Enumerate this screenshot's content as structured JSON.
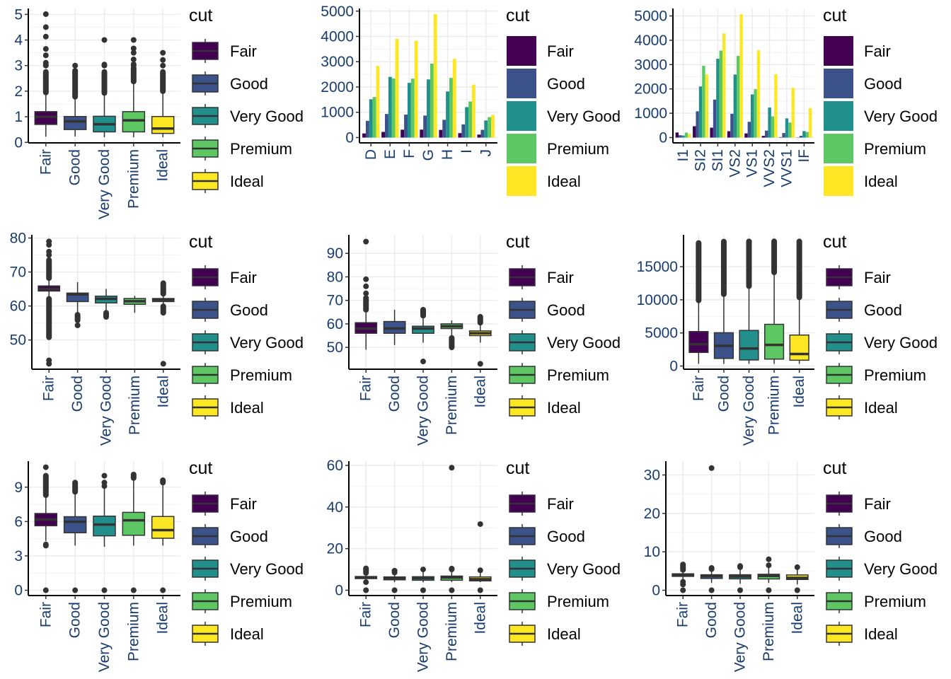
{
  "palette": {
    "Fair": "#440154",
    "Good": "#3B528B",
    "Very Good": "#21908C",
    "Premium": "#5DC863",
    "Ideal": "#FDE725",
    "box_line": "#333333",
    "grid": "#EBEBEB"
  },
  "chart_data": [
    {
      "type": "boxplot",
      "categories": [
        "Fair",
        "Good",
        "Very Good",
        "Premium",
        "Ideal"
      ],
      "ylim": [
        -0.02,
        5.23
      ],
      "yticks": [
        0,
        1,
        2,
        3,
        4,
        5
      ],
      "legend": {
        "title": "cut",
        "entries": [
          "Fair",
          "Good",
          "Very Good",
          "Premium",
          "Ideal"
        ],
        "placement": "right"
      },
      "boxes": [
        {
          "low": 0.22,
          "q1": 0.7,
          "median": 1.0,
          "q3": 1.2,
          "high": 1.95,
          "outlier_ranges": [
            [
              1.95,
              2.75
            ]
          ],
          "outliers": [
            3.0,
            3.02,
            3.11,
            3.4,
            3.65,
            4.13,
            4.5,
            5.01
          ]
        },
        {
          "low": 0.23,
          "q1": 0.5,
          "median": 0.82,
          "q3": 1.01,
          "high": 1.77,
          "outlier_ranges": [
            [
              1.78,
              2.8
            ]
          ],
          "outliers": [
            3.0
          ]
        },
        {
          "low": 0.2,
          "q1": 0.41,
          "median": 0.71,
          "q3": 1.02,
          "high": 1.92,
          "outlier_ranges": [
            [
              1.93,
              2.75
            ]
          ],
          "outliers": [
            3.0,
            3.04,
            4.0
          ]
        },
        {
          "low": 0.2,
          "q1": 0.41,
          "median": 0.86,
          "q3": 1.2,
          "high": 2.32,
          "outlier_ranges": [
            [
              2.38,
              2.9
            ]
          ],
          "outliers": [
            3.0,
            3.05,
            3.24,
            3.5,
            3.67,
            4.0
          ]
        },
        {
          "low": 0.2,
          "q1": 0.35,
          "median": 0.54,
          "q3": 1.01,
          "high": 1.97,
          "outlier_ranges": [
            [
              2.0,
              2.75
            ]
          ],
          "outliers": [
            3.0,
            3.22,
            3.5
          ]
        }
      ]
    },
    {
      "type": "bar",
      "categories": [
        "D",
        "E",
        "F",
        "G",
        "H",
        "I",
        "J"
      ],
      "ylim": [
        -210,
        5105
      ],
      "yticks": [
        0,
        1000,
        2000,
        3000,
        4000,
        5000
      ],
      "legend": {
        "title": "cut",
        "entries": [
          "Fair",
          "Good",
          "Very Good",
          "Premium",
          "Ideal"
        ],
        "placement": "right"
      },
      "series": [
        {
          "name": "Fair",
          "values": [
            163,
            224,
            312,
            314,
            303,
            175,
            119
          ]
        },
        {
          "name": "Good",
          "values": [
            662,
            933,
            909,
            871,
            702,
            522,
            307
          ]
        },
        {
          "name": "Very Good",
          "values": [
            1513,
            2400,
            2164,
            2299,
            1824,
            1204,
            678
          ]
        },
        {
          "name": "Premium",
          "values": [
            1603,
            2337,
            2331,
            2924,
            2360,
            1428,
            808
          ]
        },
        {
          "name": "Ideal",
          "values": [
            2834,
            3903,
            3826,
            4884,
            3115,
            2093,
            896
          ]
        }
      ]
    },
    {
      "type": "bar",
      "categories": [
        "I1",
        "SI2",
        "SI1",
        "VS2",
        "VS1",
        "VVS2",
        "VVS1",
        "IF"
      ],
      "ylim": [
        -218,
        5306
      ],
      "yticks": [
        0,
        1000,
        2000,
        3000,
        4000,
        5000
      ],
      "legend": {
        "title": "cut",
        "entries": [
          "Fair",
          "Good",
          "Very Good",
          "Premium",
          "Ideal"
        ],
        "placement": "right"
      },
      "series": [
        {
          "name": "Fair",
          "values": [
            210,
            466,
            408,
            261,
            170,
            69,
            17,
            9
          ]
        },
        {
          "name": "Good",
          "values": [
            96,
            1081,
            1560,
            978,
            648,
            286,
            186,
            71
          ]
        },
        {
          "name": "Very Good",
          "values": [
            84,
            2100,
            3240,
            2591,
            1775,
            1235,
            789,
            268
          ]
        },
        {
          "name": "Premium",
          "values": [
            205,
            2949,
            3575,
            3357,
            1989,
            870,
            616,
            230
          ]
        },
        {
          "name": "Ideal",
          "values": [
            146,
            2598,
            4282,
            5071,
            3589,
            2606,
            2047,
            1212
          ]
        }
      ]
    },
    {
      "type": "boxplot",
      "categories": [
        "Fair",
        "Good",
        "Very Good",
        "Premium",
        "Ideal"
      ],
      "ylim": [
        41.4,
        80.94
      ],
      "yticks": [
        50,
        60,
        70,
        80
      ],
      "legend": {
        "title": "cut",
        "entries": [
          "Fair",
          "Good",
          "Very Good",
          "Premium",
          "Ideal"
        ],
        "placement": "right"
      },
      "boxes": [
        {
          "low": 62.2,
          "q1": 64.4,
          "median": 65.0,
          "q3": 65.9,
          "high": 68.1,
          "outlier_ranges": [
            [
              50.8,
              62.1
            ],
            [
              68.2,
              73.5
            ]
          ],
          "outliers": [
            43,
            44,
            75,
            76,
            78,
            79
          ]
        },
        {
          "low": 57.5,
          "q1": 61.3,
          "median": 63.4,
          "q3": 63.8,
          "high": 67.0,
          "outlier_ranges": [
            [
              55.8,
              57.4
            ]
          ],
          "outliers": [
            54.3
          ]
        },
        {
          "low": 58.2,
          "q1": 60.9,
          "median": 62.1,
          "q3": 62.9,
          "high": 65.0,
          "outlier_ranges": [
            [
              56.8,
              58.0
            ]
          ],
          "outliers": []
        },
        {
          "low": 58.0,
          "q1": 60.5,
          "median": 61.4,
          "q3": 62.2,
          "high": 63.0,
          "outlier_ranges": [],
          "outliers": []
        },
        {
          "low": 60.0,
          "q1": 61.3,
          "median": 61.8,
          "q3": 62.2,
          "high": 63.5,
          "outlier_ranges": [
            [
              58.0,
              59.9
            ],
            [
              63.6,
              66.7
            ]
          ],
          "outliers": [
            43
          ]
        }
      ]
    },
    {
      "type": "boxplot",
      "categories": [
        "Fair",
        "Good",
        "Very Good",
        "Premium",
        "Ideal"
      ],
      "ylim": [
        40.7,
        97.9
      ],
      "yticks": [
        50,
        60,
        70,
        80,
        90
      ],
      "legend": {
        "title": "cut",
        "entries": [
          "Fair",
          "Good",
          "Very Good",
          "Premium",
          "Ideal"
        ],
        "placement": "right"
      },
      "boxes": [
        {
          "low": 49,
          "q1": 56,
          "median": 58,
          "q3": 60.5,
          "high": 65,
          "outlier_ranges": [
            [
              66,
              71
            ]
          ],
          "outliers": [
            73,
            76,
            79,
            95
          ]
        },
        {
          "low": 51,
          "q1": 56,
          "median": 58,
          "q3": 61,
          "high": 66,
          "outlier_ranges": [],
          "outliers": []
        },
        {
          "low": 52,
          "q1": 56,
          "median": 58,
          "q3": 59,
          "high": 63,
          "outlier_ranges": [
            [
              63.5,
              66
            ]
          ],
          "outliers": [
            44
          ]
        },
        {
          "low": 55,
          "q1": 58,
          "median": 59,
          "q3": 60,
          "high": 61.5,
          "outlier_ranges": [
            [
              50,
              54
            ]
          ],
          "outliers": []
        },
        {
          "low": 52,
          "q1": 55,
          "median": 56,
          "q3": 57,
          "high": 60,
          "outlier_ranges": [
            [
              60.5,
              63
            ]
          ],
          "outliers": [
            43
          ]
        }
      ]
    },
    {
      "type": "boxplot",
      "categories": [
        "Fair",
        "Good",
        "Very Good",
        "Premium",
        "Ideal"
      ],
      "ylim": [
        -481,
        19813
      ],
      "yticks": [
        0,
        5000,
        10000,
        15000
      ],
      "legend": {
        "title": "cut",
        "entries": [
          "Fair",
          "Good",
          "Very Good",
          "Premium",
          "Ideal"
        ],
        "placement": "right"
      },
      "boxes": [
        {
          "low": 337,
          "q1": 2050,
          "median": 3282,
          "q3": 5206,
          "high": 9910,
          "outlier_ranges": [
            [
              9920,
              18574
            ]
          ],
          "outliers": []
        },
        {
          "low": 327,
          "q1": 1145,
          "median": 3050,
          "q3": 5028,
          "high": 10843,
          "outlier_ranges": [
            [
              10850,
              18788
            ]
          ],
          "outliers": []
        },
        {
          "low": 336,
          "q1": 912,
          "median": 2648,
          "q3": 5373,
          "high": 12060,
          "outlier_ranges": [
            [
              12070,
              18818
            ]
          ],
          "outliers": []
        },
        {
          "low": 326,
          "q1": 1046,
          "median": 3185,
          "q3": 6296,
          "high": 14140,
          "outlier_ranges": [
            [
              14150,
              18823
            ]
          ],
          "outliers": []
        },
        {
          "low": 326,
          "q1": 878,
          "median": 1810,
          "q3": 4678,
          "high": 10376,
          "outlier_ranges": [
            [
              10380,
              18806
            ]
          ],
          "outliers": []
        }
      ]
    },
    {
      "type": "boxplot",
      "categories": [
        "Fair",
        "Good",
        "Very Good",
        "Premium",
        "Ideal"
      ],
      "ylim": [
        -0.46,
        11.27
      ],
      "yticks": [
        0,
        3,
        6,
        9
      ],
      "legend": {
        "title": "cut",
        "entries": [
          "Fair",
          "Good",
          "Very Good",
          "Premium",
          "Ideal"
        ],
        "placement": "right"
      },
      "boxes": [
        {
          "low": 4.3,
          "q1": 5.63,
          "median": 6.18,
          "q3": 6.7,
          "high": 8.3,
          "outlier_ranges": [
            [
              8.3,
              10.0
            ]
          ],
          "outliers": [
            0,
            3.9,
            4.0,
            10.74
          ]
        },
        {
          "low": 3.9,
          "q1": 5.02,
          "median": 5.98,
          "q3": 6.42,
          "high": 8.5,
          "outlier_ranges": [
            [
              8.6,
              9.4
            ]
          ],
          "outliers": [
            0
          ]
        },
        {
          "low": 3.8,
          "q1": 4.75,
          "median": 5.74,
          "q3": 6.47,
          "high": 8.9,
          "outlier_ranges": [],
          "outliers": [
            0,
            9.1,
            9.4,
            10.0
          ]
        },
        {
          "low": 3.9,
          "q1": 4.8,
          "median": 6.11,
          "q3": 6.8,
          "high": 9.7,
          "outlier_ranges": [
            [
              9.8,
              10.1
            ]
          ],
          "outliers": [
            0
          ]
        },
        {
          "low": 3.9,
          "q1": 4.54,
          "median": 5.25,
          "q3": 6.44,
          "high": 9.3,
          "outlier_ranges": [
            [
              9.4,
              9.6
            ]
          ],
          "outliers": [
            0
          ]
        }
      ]
    },
    {
      "type": "boxplot",
      "categories": [
        "Fair",
        "Good",
        "Very Good",
        "Premium",
        "Ideal"
      ],
      "ylim": [
        -2.55,
        62.04
      ],
      "yticks": [
        0,
        20,
        40,
        60
      ],
      "legend": {
        "title": "cut",
        "entries": [
          "Fair",
          "Good",
          "Very Good",
          "Premium",
          "Ideal"
        ],
        "placement": "right"
      },
      "boxes": [
        {
          "low": 4.3,
          "q1": 5.6,
          "median": 6.1,
          "q3": 6.6,
          "high": 8.3,
          "outlier_ranges": [
            [
              8.3,
              10.5
            ]
          ],
          "outliers": [
            0,
            3.9
          ]
        },
        {
          "low": 3.9,
          "q1": 5.0,
          "median": 5.9,
          "q3": 6.4,
          "high": 8.4,
          "outlier_ranges": [
            [
              8.5,
              9.4
            ]
          ],
          "outliers": [
            0
          ]
        },
        {
          "low": 3.8,
          "q1": 4.8,
          "median": 5.8,
          "q3": 6.5,
          "high": 8.9,
          "outlier_ranges": [],
          "outliers": [
            0,
            10.0
          ]
        },
        {
          "low": 3.9,
          "q1": 4.8,
          "median": 6.1,
          "q3": 6.8,
          "high": 9.7,
          "outlier_ranges": [],
          "outliers": [
            0,
            10.0,
            10.4,
            58.9
          ]
        },
        {
          "low": 3.9,
          "q1": 4.5,
          "median": 5.3,
          "q3": 6.4,
          "high": 9.3,
          "outlier_ranges": [],
          "outliers": [
            0,
            9.6,
            31.8
          ]
        }
      ]
    },
    {
      "type": "boxplot",
      "categories": [
        "Fair",
        "Good",
        "Very Good",
        "Premium",
        "Ideal"
      ],
      "ylim": [
        -1.38,
        33.6
      ],
      "yticks": [
        0,
        10,
        20,
        30
      ],
      "legend": {
        "title": "cut",
        "entries": [
          "Fair",
          "Good",
          "Very Good",
          "Premium",
          "Ideal"
        ],
        "placement": "right"
      },
      "boxes": [
        {
          "low": 2.6,
          "q1": 3.61,
          "median": 3.97,
          "q3": 4.28,
          "high": 5.3,
          "outlier_ranges": [
            [
              5.3,
              6.7
            ]
          ],
          "outliers": [
            0,
            1.5,
            2.2
          ]
        },
        {
          "low": 1.9,
          "q1": 3.07,
          "median": 3.7,
          "q3": 4.03,
          "high": 5.4,
          "outlier_ranges": [
            [
              5.5,
              5.8
            ]
          ],
          "outliers": [
            0,
            31.8
          ]
        },
        {
          "low": 1.7,
          "q1": 2.96,
          "median": 3.56,
          "q3": 4.03,
          "high": 5.6,
          "outlier_ranges": [],
          "outliers": [
            0,
            6.0,
            6.3
          ]
        },
        {
          "low": 1.9,
          "q1": 2.94,
          "median": 3.72,
          "q3": 4.16,
          "high": 6.0,
          "outlier_ranges": [],
          "outliers": [
            0,
            6.5,
            8.06
          ]
        },
        {
          "low": 1.5,
          "q1": 2.8,
          "median": 3.23,
          "q3": 3.98,
          "high": 5.7,
          "outlier_ranges": [],
          "outliers": [
            0,
            6.0
          ]
        }
      ]
    }
  ]
}
